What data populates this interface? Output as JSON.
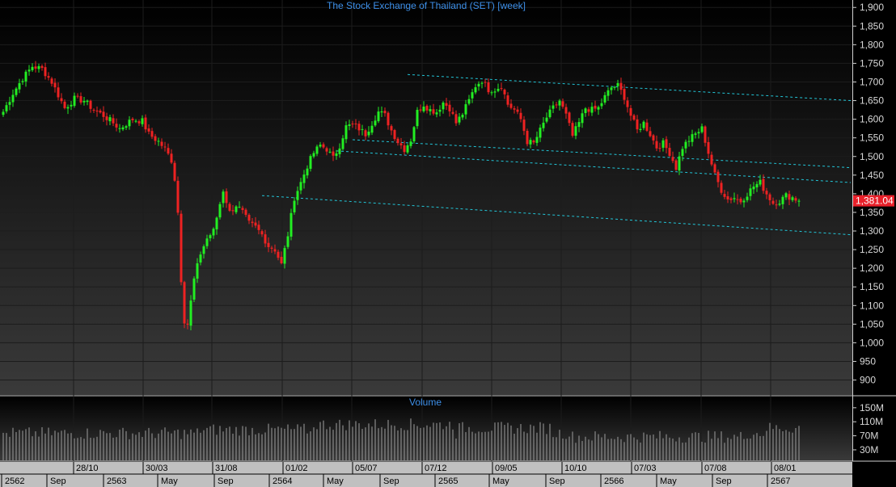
{
  "chart_data": {
    "type": "candlestick",
    "title": "The Stock Exchange of Thailand (SET) [week]",
    "volume_title": "Volume",
    "last_value": 1381.04,
    "last_value_label": "1,381.04",
    "ylim": [
      860,
      1920
    ],
    "yticks": [
      "900",
      "950",
      "1,000",
      "1,050",
      "1,100",
      "1,150",
      "1,200",
      "1,250",
      "1,300",
      "1,350",
      "1,400",
      "1,450",
      "1,500",
      "1,550",
      "1,600",
      "1,650",
      "1,700",
      "1,750",
      "1,800",
      "1,850",
      "1,900"
    ],
    "volume_ylim": [
      0,
      175
    ],
    "volume_ticks": [
      "30M",
      "70M",
      "110M",
      "150M"
    ],
    "x_labels_row1": [
      "28/10",
      "30/03",
      "31/08",
      "01/02",
      "05/07",
      "07/12",
      "09/05",
      "10/10",
      "07/03",
      "07/08",
      "08/01"
    ],
    "x_labels_row2": [
      "2562",
      "Sep",
      "2563",
      "May",
      "Sep",
      "2564",
      "May",
      "Sep",
      "2565",
      "May",
      "Sep",
      "2566",
      "May",
      "Sep",
      "2567"
    ],
    "price_anchors": [
      [
        0,
        1620
      ],
      [
        3,
        1670
      ],
      [
        6,
        1710
      ],
      [
        9,
        1742
      ],
      [
        12,
        1735
      ],
      [
        15,
        1700
      ],
      [
        19,
        1630
      ],
      [
        22,
        1655
      ],
      [
        25,
        1650
      ],
      [
        28,
        1625
      ],
      [
        31,
        1610
      ],
      [
        34,
        1590
      ],
      [
        36,
        1575
      ],
      [
        40,
        1600
      ],
      [
        43,
        1595
      ],
      [
        45,
        1560
      ],
      [
        48,
        1540
      ],
      [
        50,
        1520
      ],
      [
        52,
        1490
      ],
      [
        53,
        1440
      ],
      [
        54,
        1350
      ],
      [
        55,
        1170
      ],
      [
        56,
        1060
      ],
      [
        57,
        1050
      ],
      [
        58,
        1110
      ],
      [
        59,
        1170
      ],
      [
        61,
        1240
      ],
      [
        63,
        1280
      ],
      [
        65,
        1300
      ],
      [
        68,
        1410
      ],
      [
        70,
        1350
      ],
      [
        72,
        1370
      ],
      [
        74,
        1350
      ],
      [
        76,
        1320
      ],
      [
        78,
        1310
      ],
      [
        80,
        1290
      ],
      [
        82,
        1260
      ],
      [
        84,
        1250
      ],
      [
        86,
        1210
      ],
      [
        88,
        1290
      ],
      [
        90,
        1390
      ],
      [
        92,
        1430
      ],
      [
        94,
        1475
      ],
      [
        96,
        1510
      ],
      [
        98,
        1530
      ],
      [
        100,
        1520
      ],
      [
        102,
        1495
      ],
      [
        104,
        1530
      ],
      [
        106,
        1580
      ],
      [
        108,
        1585
      ],
      [
        110,
        1575
      ],
      [
        112,
        1560
      ],
      [
        114,
        1590
      ],
      [
        116,
        1620
      ],
      [
        118,
        1610
      ],
      [
        120,
        1570
      ],
      [
        122,
        1540
      ],
      [
        124,
        1520
      ],
      [
        126,
        1545
      ],
      [
        128,
        1620
      ],
      [
        130,
        1640
      ],
      [
        132,
        1625
      ],
      [
        134,
        1620
      ],
      [
        136,
        1645
      ],
      [
        138,
        1630
      ],
      [
        140,
        1590
      ],
      [
        142,
        1615
      ],
      [
        144,
        1650
      ],
      [
        146,
        1690
      ],
      [
        148,
        1705
      ],
      [
        150,
        1680
      ],
      [
        152,
        1680
      ],
      [
        154,
        1690
      ],
      [
        156,
        1640
      ],
      [
        158,
        1625
      ],
      [
        160,
        1600
      ],
      [
        162,
        1540
      ],
      [
        164,
        1535
      ],
      [
        166,
        1570
      ],
      [
        168,
        1605
      ],
      [
        170,
        1630
      ],
      [
        172,
        1650
      ],
      [
        174,
        1610
      ],
      [
        176,
        1555
      ],
      [
        178,
        1590
      ],
      [
        180,
        1630
      ],
      [
        182,
        1625
      ],
      [
        184,
        1630
      ],
      [
        186,
        1660
      ],
      [
        188,
        1685
      ],
      [
        190,
        1690
      ],
      [
        192,
        1660
      ],
      [
        194,
        1610
      ],
      [
        196,
        1570
      ],
      [
        198,
        1590
      ],
      [
        200,
        1560
      ],
      [
        202,
        1525
      ],
      [
        204,
        1535
      ],
      [
        206,
        1510
      ],
      [
        208,
        1470
      ],
      [
        210,
        1525
      ],
      [
        212,
        1545
      ],
      [
        214,
        1560
      ],
      [
        216,
        1575
      ],
      [
        218,
        1510
      ],
      [
        220,
        1450
      ],
      [
        222,
        1410
      ],
      [
        224,
        1385
      ],
      [
        226,
        1390
      ],
      [
        228,
        1380
      ],
      [
        230,
        1400
      ],
      [
        232,
        1420
      ],
      [
        234,
        1430
      ],
      [
        236,
        1400
      ],
      [
        238,
        1375
      ],
      [
        240,
        1380
      ],
      [
        242,
        1395
      ],
      [
        244,
        1390
      ],
      [
        246,
        1381.04
      ]
    ],
    "trend_lines": [
      {
        "start": [
          125,
          1720
        ],
        "end": [
          262,
          1650
        ]
      },
      {
        "start": [
          108,
          1545
        ],
        "end": [
          262,
          1470
        ]
      },
      {
        "start": [
          103,
          1515
        ],
        "end": [
          262,
          1430
        ]
      },
      {
        "start": [
          80,
          1395
        ],
        "end": [
          262,
          1290
        ]
      }
    ],
    "grid": true,
    "colors": {
      "up": "#22ee22",
      "down": "#ee2222",
      "title": "#3d8fe8",
      "trend": "#22c6d8",
      "last_bg": "#e8202a",
      "volume": "#8a8a8a",
      "time_axis_bg": "#c0c0c0"
    }
  }
}
